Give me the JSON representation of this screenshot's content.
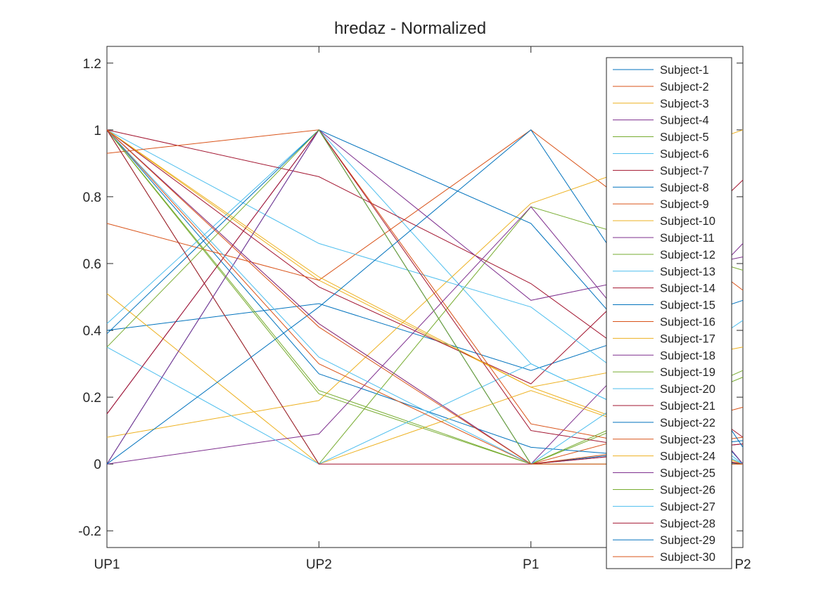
{
  "chart_data": {
    "type": "line",
    "title": "hredaz - Normalized",
    "xlabel": "",
    "ylabel": "",
    "categories": [
      "UP1",
      "UP2",
      "P1",
      "P2"
    ],
    "ylim": [
      -0.25,
      1.25
    ],
    "yticks": [
      "-0.2",
      "0",
      "0.2",
      "0.4",
      "0.6",
      "0.8",
      "1",
      "1.2"
    ],
    "ytick_values": [
      -0.2,
      0,
      0.2,
      0.4,
      0.6,
      0.8,
      1,
      1.2
    ],
    "grid": false,
    "legend_position": "top-right",
    "series": [
      {
        "name": "Subject-1",
        "color": "#0072BD",
        "values": [
          0.4,
          0.48,
          0.28,
          0.49
        ]
      },
      {
        "name": "Subject-2",
        "color": "#D95319",
        "values": [
          1.0,
          0.42,
          0.0,
          0.17
        ]
      },
      {
        "name": "Subject-3",
        "color": "#EDB120",
        "values": [
          1.0,
          0.55,
          0.23,
          0.0
        ]
      },
      {
        "name": "Subject-4",
        "color": "#7E2F8E",
        "values": [
          0.15,
          1.0,
          0.0,
          0.66
        ]
      },
      {
        "name": "Subject-5",
        "color": "#77AC30",
        "values": [
          1.0,
          0.21,
          0.0,
          0.26
        ]
      },
      {
        "name": "Subject-6",
        "color": "#4DBEEE",
        "values": [
          0.42,
          1.0,
          0.3,
          0.0
        ]
      },
      {
        "name": "Subject-7",
        "color": "#A2142F",
        "values": [
          1.0,
          0.53,
          0.24,
          0.85
        ]
      },
      {
        "name": "Subject-8",
        "color": "#0072BD",
        "values": [
          1.0,
          0.27,
          0.05,
          0.0
        ]
      },
      {
        "name": "Subject-9",
        "color": "#D95319",
        "values": [
          0.72,
          0.55,
          1.0,
          0.52
        ]
      },
      {
        "name": "Subject-10",
        "color": "#EDB120",
        "values": [
          0.08,
          0.19,
          0.78,
          1.0
        ]
      },
      {
        "name": "Subject-11",
        "color": "#7E2F8E",
        "values": [
          1.0,
          0.42,
          0.0,
          0.06
        ]
      },
      {
        "name": "Subject-12",
        "color": "#77AC30",
        "values": [
          1.0,
          0.0,
          0.77,
          0.58
        ]
      },
      {
        "name": "Subject-13",
        "color": "#4DBEEE",
        "values": [
          1.0,
          0.66,
          0.47,
          0.0
        ]
      },
      {
        "name": "Subject-14",
        "color": "#A2142F",
        "values": [
          1.0,
          0.86,
          0.54,
          0.08
        ]
      },
      {
        "name": "Subject-15",
        "color": "#0072BD",
        "values": [
          0.0,
          1.0,
          0.72,
          0.0
        ]
      },
      {
        "name": "Subject-16",
        "color": "#D95319",
        "values": [
          0.93,
          1.0,
          0.12,
          0.0
        ]
      },
      {
        "name": "Subject-17",
        "color": "#EDB120",
        "values": [
          0.51,
          0.0,
          0.22,
          0.0
        ]
      },
      {
        "name": "Subject-18",
        "color": "#7E2F8E",
        "values": [
          0.0,
          0.09,
          0.77,
          0.0
        ]
      },
      {
        "name": "Subject-19",
        "color": "#77AC30",
        "values": [
          1.0,
          0.22,
          0.0,
          0.28
        ]
      },
      {
        "name": "Subject-20",
        "color": "#4DBEEE",
        "values": [
          0.35,
          0.0,
          0.3,
          0.0
        ]
      },
      {
        "name": "Subject-21",
        "color": "#A2142F",
        "values": [
          0.15,
          1.0,
          0.1,
          0.0
        ]
      },
      {
        "name": "Subject-22",
        "color": "#0072BD",
        "values": [
          0.39,
          1.0,
          0.0,
          0.07
        ]
      },
      {
        "name": "Subject-23",
        "color": "#D95319",
        "values": [
          1.0,
          0.3,
          0.0,
          0.08
        ]
      },
      {
        "name": "Subject-24",
        "color": "#EDB120",
        "values": [
          1.0,
          0.56,
          0.23,
          0.35
        ]
      },
      {
        "name": "Subject-25",
        "color": "#7E2F8E",
        "values": [
          0.0,
          1.0,
          0.49,
          0.62
        ]
      },
      {
        "name": "Subject-26",
        "color": "#77AC30",
        "values": [
          0.35,
          1.0,
          0.0,
          0.0
        ]
      },
      {
        "name": "Subject-27",
        "color": "#4DBEEE",
        "values": [
          1.0,
          0.32,
          0.0,
          0.43
        ]
      },
      {
        "name": "Subject-28",
        "color": "#A2142F",
        "values": [
          1.0,
          0.0,
          0.0,
          0.06
        ]
      },
      {
        "name": "Subject-29",
        "color": "#0072BD",
        "values": [
          0.0,
          0.47,
          1.0,
          0.05
        ]
      },
      {
        "name": "Subject-30",
        "color": "#D95319",
        "values": [
          1.0,
          0.41,
          0.0,
          0.0
        ]
      }
    ]
  }
}
